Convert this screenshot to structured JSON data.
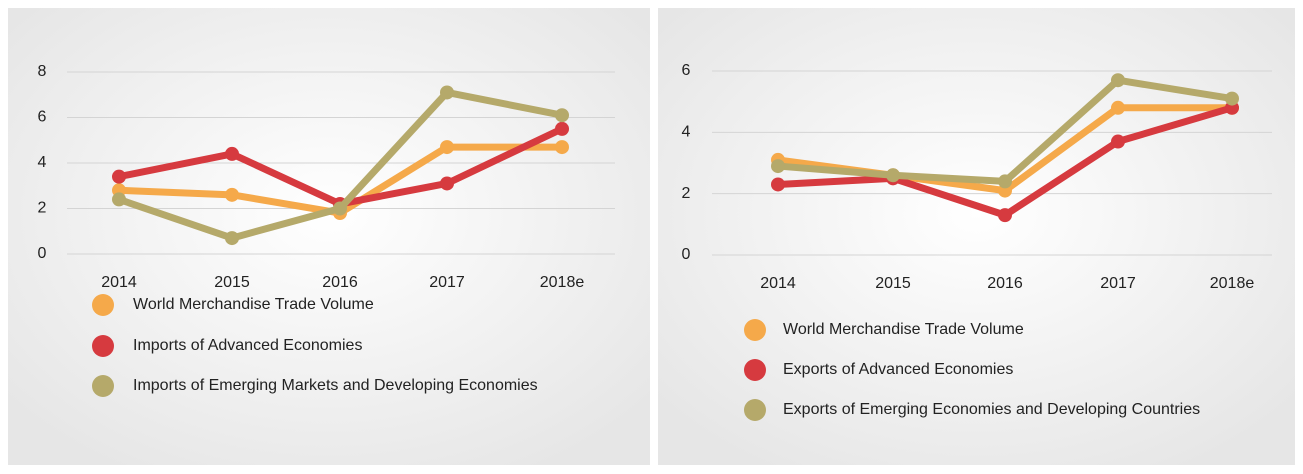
{
  "chart_data": [
    {
      "type": "line",
      "categories": [
        "2014",
        "2015",
        "2016",
        "2017",
        "2018e"
      ],
      "series": [
        {
          "name": "World Merchandise Trade Volume",
          "color": "#f5a94a",
          "values": [
            2.8,
            2.6,
            1.8,
            4.7,
            4.7
          ]
        },
        {
          "name": "Imports of Advanced Economies",
          "color": "#d63a3f",
          "values": [
            3.4,
            4.4,
            2.2,
            3.1,
            5.5
          ]
        },
        {
          "name": "Imports of Emerging Markets and Developing Economies",
          "color": "#b5a96a",
          "values": [
            2.4,
            0.7,
            2.0,
            7.1,
            6.1
          ]
        }
      ],
      "ylim": [
        0,
        8
      ],
      "yticks": [
        0,
        2,
        4,
        6,
        8
      ],
      "grid": true
    },
    {
      "type": "line",
      "categories": [
        "2014",
        "2015",
        "2016",
        "2017",
        "2018e"
      ],
      "series": [
        {
          "name": "World Merchandise Trade Volume",
          "color": "#f5a94a",
          "values": [
            3.1,
            2.6,
            2.1,
            4.8,
            4.8
          ]
        },
        {
          "name": "Exports of Advanced Economies",
          "color": "#d63a3f",
          "values": [
            2.3,
            2.5,
            1.3,
            3.7,
            4.8
          ]
        },
        {
          "name": "Exports of Emerging Economies and Developing Countries",
          "color": "#b5a96a",
          "values": [
            2.9,
            2.6,
            2.4,
            5.7,
            5.1
          ]
        }
      ],
      "ylim": [
        0,
        6
      ],
      "yticks": [
        0,
        2,
        4,
        6
      ],
      "grid": true
    }
  ]
}
